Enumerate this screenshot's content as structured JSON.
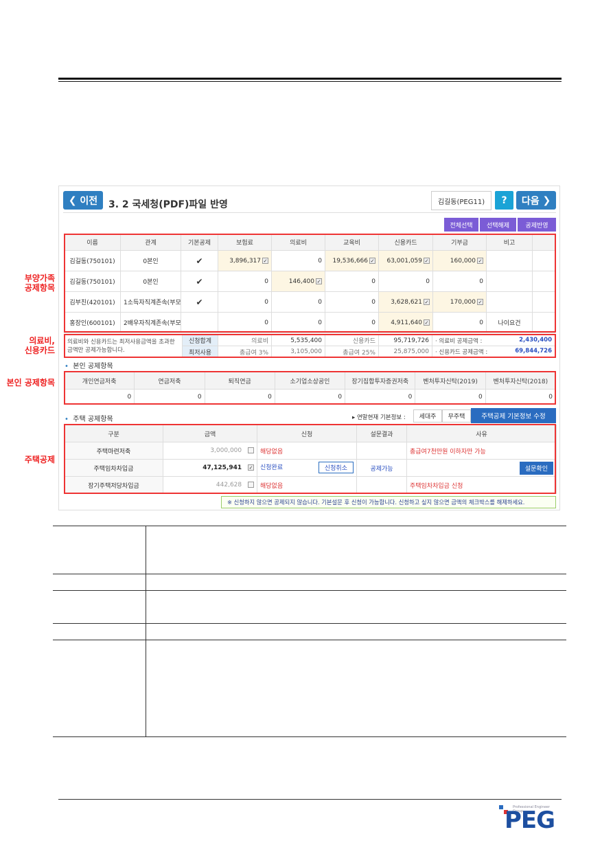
{
  "header": {
    "prev": "이전",
    "title": "3. 2  국세청(PDF)파일 반영",
    "user": "김길동(PEG11)",
    "help": "?",
    "next": "다음"
  },
  "actions": [
    "전체선택",
    "선택해제",
    "공제반영"
  ],
  "family": {
    "headers": [
      "이름",
      "관계",
      "기본공제",
      "보험료",
      "의료비",
      "교육비",
      "신용카드",
      "기부금",
      "비고"
    ],
    "rows": [
      [
        "김길동(750101)",
        "0본인",
        "✔",
        "3,896,317",
        "0",
        "19,536,666",
        "63,001,059",
        "160,000",
        ""
      ],
      [
        "김길동(750101)",
        "0본인",
        "✔",
        "0",
        "146,400",
        "0",
        "0",
        "0",
        ""
      ],
      [
        "김부친(420101)",
        "1소득자직계존속(부모,조",
        "✔",
        "0",
        "0",
        "0",
        "3,628,621",
        "170,000",
        ""
      ],
      [
        "홍장인(600101)",
        "2배우자직계존속(부모,조",
        "",
        "0",
        "0",
        "0",
        "4,911,640",
        "0",
        "나이요건"
      ]
    ]
  },
  "summary": {
    "note": "의료비와 신용카드는 최저사용금액을 초과한 금액만 공제가능합니다.",
    "row1": [
      "신청합계",
      "의료비",
      "5,535,400",
      "신용카드",
      "95,719,726"
    ],
    "row2": [
      "최저사용",
      "총급여 3%",
      "3,105,000",
      "총급여 25%",
      "25,875,000"
    ],
    "med_label": "· 의료비 공제금액 :",
    "med_value": "2,430,400",
    "card_label": "· 신용카드 공제금액 :",
    "card_value": "69,844,726"
  },
  "own": {
    "title": "본인 공제항목",
    "headers": [
      "개인연금저축",
      "연금저축",
      "퇴직연금",
      "소기업소상공인",
      "장기집합투자증권저축",
      "벤처투자신탁(2019)",
      "벤처투자신탁(2018)"
    ],
    "values": [
      "0",
      "0",
      "0",
      "0",
      "0",
      "0",
      "0"
    ]
  },
  "housing": {
    "title": "주택 공제항목",
    "info_label": "▸ 연말현재 기본정보 :",
    "info": [
      "세대주",
      "무주택"
    ],
    "edit": "주택공제 기본정보 수정",
    "headers": [
      "구분",
      "금액",
      "신청",
      "설문결과",
      "사유"
    ],
    "rows": [
      {
        "name": "주택마련저축",
        "amount": "3,000,000",
        "checked": false,
        "status": "해당없음",
        "result": "",
        "reason": "총급여7천만원 이하자만 가능"
      },
      {
        "name": "주택임차차입금",
        "amount": "47,125,941",
        "checked": true,
        "status": "신청완료",
        "cancel": "신청취소",
        "result": "공제가능",
        "reason": "",
        "survey": "설문확인"
      },
      {
        "name": "장기주택저당차입금",
        "amount": "442,628",
        "checked": false,
        "status": "해당없음",
        "result": "",
        "reason": "주택임차차입금 신청"
      }
    ]
  },
  "note": "※ 신청하지 않으면 공제되지 않습니다. 기본설문 후 신청이 가능합니다. 신청하고 싶지 않으면 금액의 체크박스를 해제하세요.",
  "annotations": [
    "부양가족\n공제항목",
    "의료비, 신용카드",
    "본인 공제항목",
    "주택공제"
  ],
  "logo": {
    "text": "PEG",
    "tagline": "Professional Engineer Group"
  }
}
